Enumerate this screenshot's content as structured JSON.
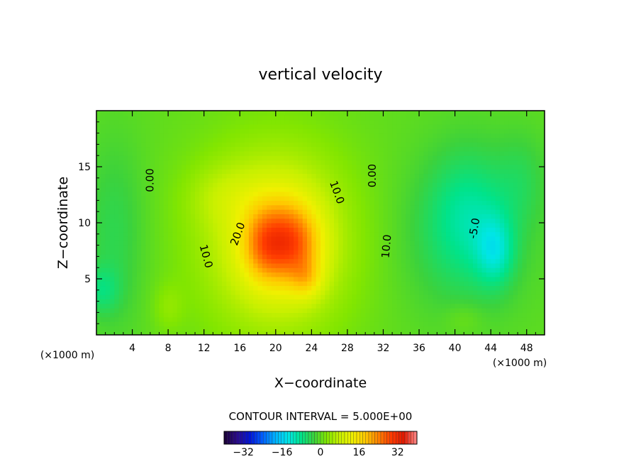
{
  "chart_data": {
    "type": "heatmap",
    "title": "vertical velocity",
    "xlabel": "X−coordinate",
    "ylabel": "Z−coordinate",
    "x_unit_left": "(×1000 m)",
    "x_unit_right": "(×1000 m)",
    "xlim": [
      0,
      50
    ],
    "ylim": [
      0,
      20
    ],
    "x_ticks": [
      4,
      8,
      12,
      16,
      20,
      24,
      28,
      32,
      36,
      40,
      44,
      48
    ],
    "y_ticks": [
      5,
      10,
      15
    ],
    "contour_interval_text": "CONTOUR INTERVAL = 5.000E+00",
    "contour_labels": [
      {
        "text": "0.00",
        "x": 6.0,
        "y": 13.8,
        "angle": -90
      },
      {
        "text": "0.00",
        "x": 30.8,
        "y": 14.2,
        "angle": -90
      },
      {
        "text": "10.0",
        "x": 26.8,
        "y": 12.7,
        "angle": 70
      },
      {
        "text": "10.0",
        "x": 12.2,
        "y": 7.0,
        "angle": 75
      },
      {
        "text": "20.0",
        "x": 15.8,
        "y": 9.0,
        "angle": -70
      },
      {
        "text": "10.0",
        "x": 32.4,
        "y": 7.9,
        "angle": -85
      },
      {
        "text": "-5.0",
        "x": 42.2,
        "y": 9.5,
        "angle": -80
      }
    ],
    "field_sources": [
      {
        "x": 20.5,
        "y": 8.5,
        "amp": 12,
        "sx": 2.6,
        "sy": 2.8
      },
      {
        "x": 22.5,
        "y": 8.0,
        "amp": 8,
        "sx": 2.0,
        "sy": 2.4
      },
      {
        "x": 18.5,
        "y": 8.0,
        "amp": 7,
        "sx": 1.6,
        "sy": 2.2
      },
      {
        "x": 23.5,
        "y": 5.0,
        "amp": 6,
        "sx": 1.2,
        "sy": 1.2
      },
      {
        "x": 20.0,
        "y": 8.5,
        "amp": 12,
        "sx": 6.0,
        "sy": 6.0
      },
      {
        "x": 14.0,
        "y": 12.5,
        "amp": 3,
        "sx": 3.0,
        "sy": 2.0
      },
      {
        "x": 8.0,
        "y": 2.5,
        "amp": 3,
        "sx": 1.2,
        "sy": 1.5
      },
      {
        "x": 2.0,
        "y": 9.0,
        "amp": -4,
        "sx": 2.5,
        "sy": 6.0
      },
      {
        "x": 0.5,
        "y": 4.0,
        "amp": -5,
        "sx": 1.5,
        "sy": 1.5
      },
      {
        "x": 41.0,
        "y": 9.0,
        "amp": -5,
        "sx": 5.0,
        "sy": 5.0
      },
      {
        "x": 44.5,
        "y": 7.5,
        "amp": -8,
        "sx": 1.5,
        "sy": 2.2
      },
      {
        "x": 41.5,
        "y": 11.0,
        "amp": -5,
        "sx": 3.0,
        "sy": 4.0
      },
      {
        "x": 47.5,
        "y": 14.0,
        "amp": -3,
        "sx": 2.0,
        "sy": 3.0
      },
      {
        "x": 41.0,
        "y": 1.5,
        "amp": 2,
        "sx": 1.5,
        "sy": 1.0
      }
    ],
    "colorbar": {
      "ticks": [
        -32,
        -16,
        0,
        16,
        32
      ],
      "tick_labels": [
        "−32",
        "−16",
        "0",
        "16",
        "32"
      ],
      "range": [
        -40,
        40
      ]
    },
    "colormap": [
      "#1a0033",
      "#2a0a8a",
      "#0014d8",
      "#0060ff",
      "#00b4ff",
      "#00e6e6",
      "#00e38a",
      "#3cd23c",
      "#82e600",
      "#c8f000",
      "#f0f000",
      "#ffc800",
      "#ff8200",
      "#ff3c00",
      "#e01800",
      "#ff8c8c"
    ]
  }
}
